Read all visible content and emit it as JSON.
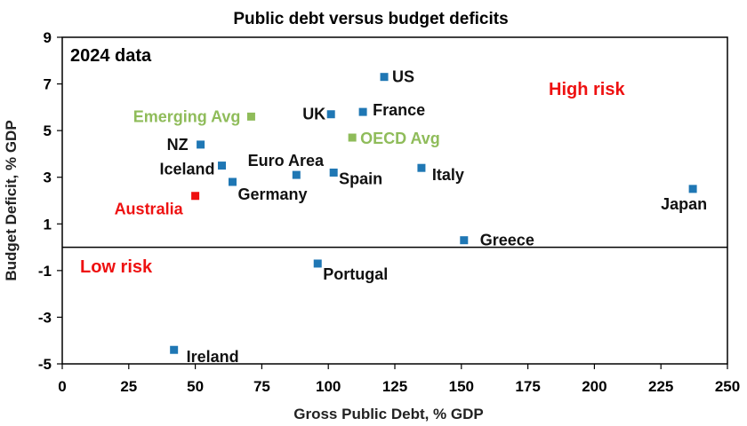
{
  "chart_data": {
    "type": "scatter",
    "title": "Public debt versus budget deficits",
    "xlabel": "Gross Public Debt, % GDP",
    "ylabel": "Budget Deficit, % GDP",
    "xlim": [
      0,
      250
    ],
    "ylim": [
      -5,
      9
    ],
    "xticks": [
      0,
      25,
      50,
      75,
      100,
      125,
      150,
      175,
      200,
      225,
      250
    ],
    "yticks": [
      -5,
      -3,
      -1,
      1,
      3,
      5,
      7,
      9
    ],
    "grid": false,
    "colors": {
      "country": "#1f77b4",
      "average": "#8fbc5a",
      "highlight": "#ee1111",
      "risk_text": "#ee1111"
    },
    "points": [
      {
        "label": "US",
        "x": 121,
        "y": 7.3,
        "kind": "country"
      },
      {
        "label": "UK",
        "x": 101,
        "y": 5.7,
        "kind": "country"
      },
      {
        "label": "France",
        "x": 113,
        "y": 5.8,
        "kind": "country"
      },
      {
        "label": "Emerging Avg",
        "x": 71,
        "y": 5.6,
        "kind": "average"
      },
      {
        "label": "OECD Avg",
        "x": 109,
        "y": 4.7,
        "kind": "average"
      },
      {
        "label": "NZ",
        "x": 52,
        "y": 4.4,
        "kind": "country"
      },
      {
        "label": "Euro Area",
        "x": 88,
        "y": 3.1,
        "kind": "country"
      },
      {
        "label": "Iceland",
        "x": 60,
        "y": 3.5,
        "kind": "country"
      },
      {
        "label": "Spain",
        "x": 102,
        "y": 3.2,
        "kind": "country"
      },
      {
        "label": "Italy",
        "x": 135,
        "y": 3.4,
        "kind": "country"
      },
      {
        "label": "Germany",
        "x": 64,
        "y": 2.8,
        "kind": "country"
      },
      {
        "label": "Australia",
        "x": 50,
        "y": 2.2,
        "kind": "highlight"
      },
      {
        "label": "Japan",
        "x": 237,
        "y": 2.5,
        "kind": "country"
      },
      {
        "label": "Greece",
        "x": 151,
        "y": 0.3,
        "kind": "country"
      },
      {
        "label": "Portugal",
        "x": 96,
        "y": -0.7,
        "kind": "country"
      },
      {
        "label": "Ireland",
        "x": 42,
        "y": -4.4,
        "kind": "country"
      }
    ],
    "annotations": {
      "data_year": "2024 data",
      "high_risk": "High risk",
      "low_risk": "Low risk"
    }
  }
}
